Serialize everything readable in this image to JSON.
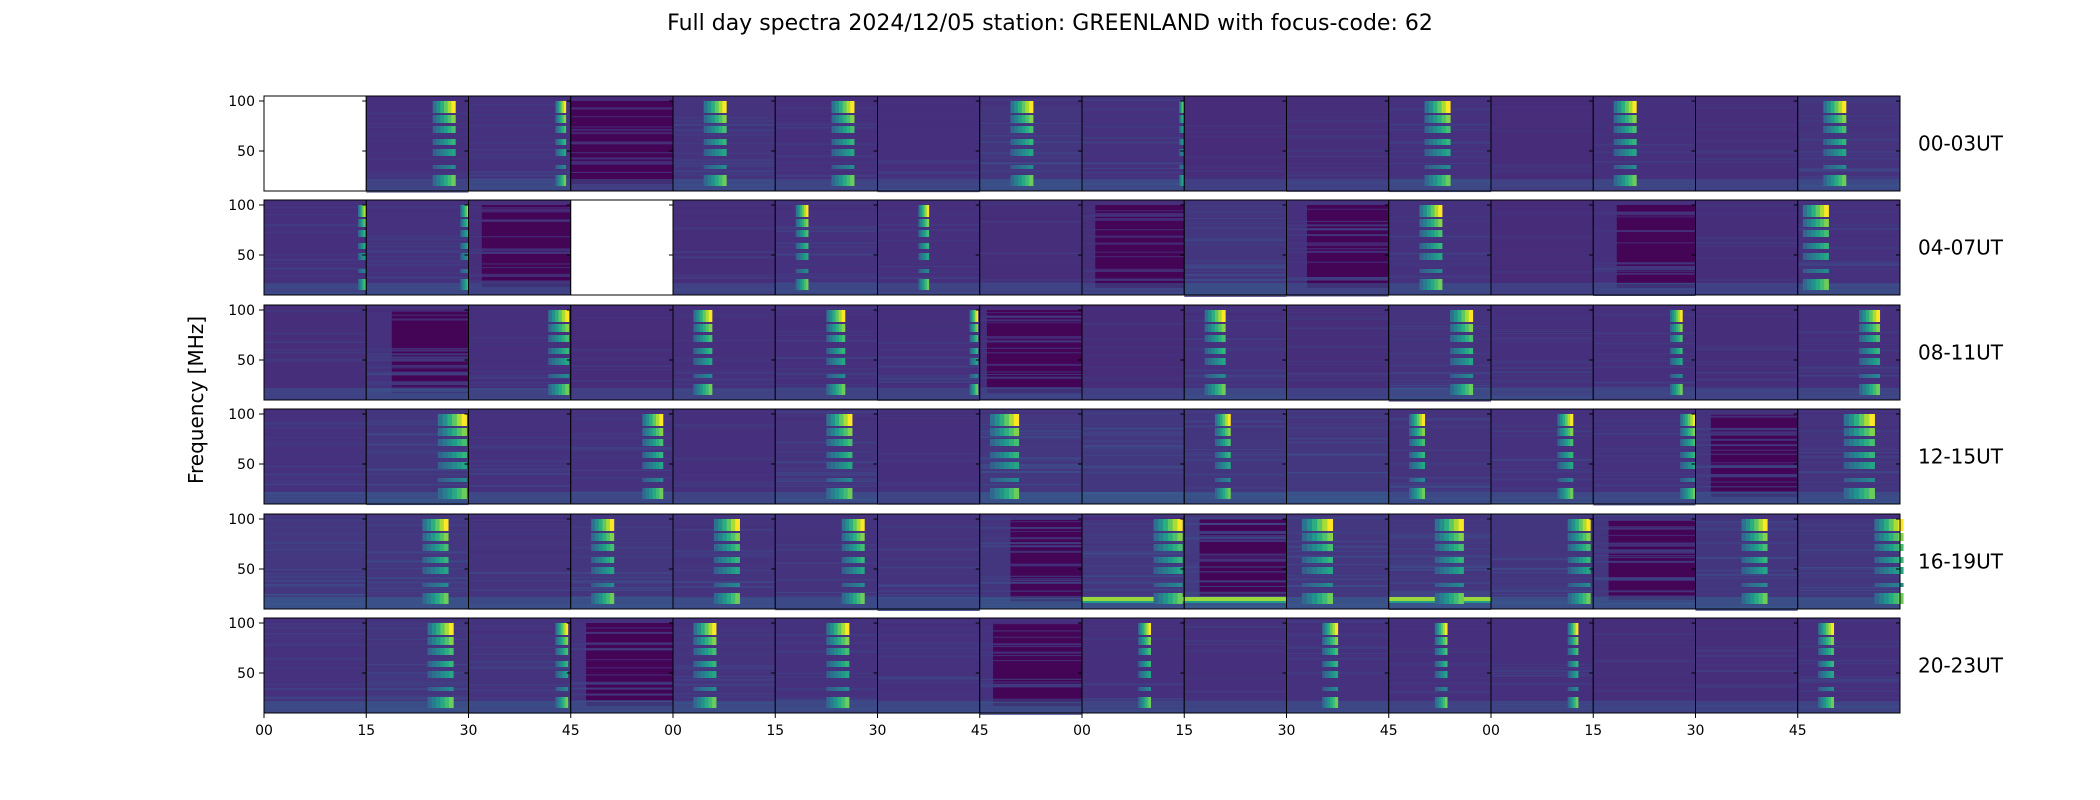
{
  "chart_data": {
    "type": "heatmap",
    "title": "Full day spectra 2024/12/05 station: GREENLAND with focus-code: 62",
    "ylabel": "Frequency [MHz]",
    "xlabel": "",
    "colormap": "viridis",
    "yticks": [
      50,
      100
    ],
    "ylim": [
      10,
      105
    ],
    "xtick_labels": [
      "00",
      "15",
      "30",
      "45",
      "00",
      "15",
      "30",
      "45",
      "00",
      "15",
      "30",
      "45",
      "00",
      "15",
      "30",
      "45"
    ],
    "rows": [
      {
        "label": "00-03UT",
        "panels": [
          {
            "empty": true
          },
          {
            "burst": 0.65,
            "width": 0.22,
            "noise": 0.3
          },
          {
            "burst": 0.85,
            "width": 0.1,
            "noise": 0.35
          },
          {
            "quiet": true,
            "noise": 0.2
          },
          {
            "burst": 0.3,
            "width": 0.22,
            "noise": 0.4
          },
          {
            "burst": 0.55,
            "width": 0.22,
            "noise": 0.3
          },
          {
            "burst": null,
            "noise": 0.3
          },
          {
            "burst": 0.3,
            "width": 0.22,
            "noise": 0.45
          },
          {
            "burst": 0.95,
            "width": 0.06,
            "noise": 0.35
          },
          {
            "burst": null,
            "noise": 0.2
          },
          {
            "burst": null,
            "noise": 0.25
          },
          {
            "burst": 0.35,
            "width": 0.25,
            "noise": 0.35
          },
          {
            "burst": null,
            "noise": 0.2
          },
          {
            "burst": 0.2,
            "width": 0.22,
            "noise": 0.3
          },
          {
            "burst": null,
            "noise": 0.25
          },
          {
            "burst": 0.25,
            "width": 0.22,
            "noise": 0.4
          }
        ]
      },
      {
        "label": "04-07UT",
        "panels": [
          {
            "burst": 0.92,
            "width": 0.08,
            "noise": 0.3
          },
          {
            "burst": 0.92,
            "width": 0.1,
            "noise": 0.35
          },
          {
            "burst": 0.05,
            "width": 0.08,
            "quiet": true,
            "noise": 0.25
          },
          {
            "empty": true
          },
          {
            "burst": null,
            "noise": 0.25
          },
          {
            "burst": 0.2,
            "width": 0.12,
            "noise": 0.35
          },
          {
            "burst": 0.4,
            "width": 0.1,
            "noise": 0.3
          },
          {
            "burst": null,
            "noise": 0.25
          },
          {
            "burst": 0.05,
            "width": 0.08,
            "quiet": true,
            "noise": 0.25
          },
          {
            "burst": null,
            "noise": 0.45
          },
          {
            "burst": 0.05,
            "width": 0.15,
            "quiet": true,
            "noise": 0.3
          },
          {
            "burst": 0.3,
            "width": 0.22,
            "noise": 0.35
          },
          {
            "burst": null,
            "noise": 0.2
          },
          {
            "burst": 0.05,
            "width": 0.18,
            "quiet": true,
            "noise": 0.3
          },
          {
            "burst": null,
            "noise": 0.25
          },
          {
            "burst": 0.05,
            "width": 0.25,
            "noise": 0.35
          }
        ]
      },
      {
        "label": "08-11UT",
        "panels": [
          {
            "burst": null,
            "noise": 0.25
          },
          {
            "burst": 0.05,
            "width": 0.2,
            "quiet": true,
            "noise": 0.35
          },
          {
            "burst": 0.78,
            "width": 0.2,
            "noise": 0.3
          },
          {
            "burst": null,
            "noise": 0.2
          },
          {
            "burst": 0.2,
            "width": 0.18,
            "noise": 0.3
          },
          {
            "burst": 0.5,
            "width": 0.18,
            "noise": 0.3
          },
          {
            "burst": 0.9,
            "width": 0.08,
            "noise": 0.3
          },
          {
            "burst": 0.02,
            "width": 0.05,
            "quiet": true,
            "noise": 0.25
          },
          {
            "burst": null,
            "noise": 0.2
          },
          {
            "burst": 0.2,
            "width": 0.2,
            "noise": 0.35
          },
          {
            "burst": null,
            "noise": 0.25
          },
          {
            "burst": 0.6,
            "width": 0.22,
            "noise": 0.4
          },
          {
            "burst": null,
            "noise": 0.3
          },
          {
            "burst": 0.75,
            "width": 0.12,
            "noise": 0.3
          },
          {
            "burst": null,
            "noise": 0.25
          },
          {
            "burst": 0.6,
            "width": 0.2,
            "noise": 0.3
          }
        ]
      },
      {
        "label": "12-15UT",
        "panels": [
          {
            "burst": null,
            "noise": 0.35
          },
          {
            "burst": 0.7,
            "width": 0.28,
            "noise": 0.45
          },
          {
            "burst": null,
            "noise": 0.35
          },
          {
            "burst": 0.7,
            "width": 0.2,
            "noise": 0.35
          },
          {
            "burst": null,
            "noise": 0.3
          },
          {
            "burst": 0.5,
            "width": 0.25,
            "noise": 0.4
          },
          {
            "burst": null,
            "noise": 0.3
          },
          {
            "burst": 0.1,
            "width": 0.28,
            "noise": 0.5
          },
          {
            "burst": null,
            "noise": 0.55
          },
          {
            "burst": 0.3,
            "width": 0.15,
            "noise": 0.45
          },
          {
            "burst": null,
            "noise": 0.5
          },
          {
            "burst": 0.2,
            "width": 0.15,
            "noise": 0.4
          },
          {
            "burst": 0.65,
            "width": 0.15,
            "noise": 0.35
          },
          {
            "burst": 0.85,
            "width": 0.15,
            "noise": 0.35
          },
          {
            "burst": 0.05,
            "width": 0.1,
            "quiet": true,
            "noise": 0.4
          },
          {
            "burst": 0.45,
            "width": 0.3,
            "noise": 0.4
          }
        ]
      },
      {
        "label": "16-19UT",
        "panels": [
          {
            "burst": null,
            "noise": 0.5
          },
          {
            "burst": 0.55,
            "width": 0.25,
            "noise": 0.5
          },
          {
            "burst": null,
            "noise": 0.4
          },
          {
            "burst": 0.2,
            "width": 0.22,
            "noise": 0.45
          },
          {
            "burst": 0.4,
            "width": 0.25,
            "noise": 0.4
          },
          {
            "burst": 0.65,
            "width": 0.22,
            "noise": 0.4
          },
          {
            "burst": null,
            "noise": 0.4
          },
          {
            "burst": 0.1,
            "width": 0.2,
            "quiet": true,
            "noise": 0.45
          },
          {
            "burst": 0.7,
            "width": 0.28,
            "noise": 0.5,
            "hband": true
          },
          {
            "burst": 0.05,
            "width": 0.1,
            "quiet": true,
            "noise": 0.6,
            "hband": true
          },
          {
            "burst": 0.15,
            "width": 0.3,
            "noise": 0.5
          },
          {
            "burst": 0.45,
            "width": 0.28,
            "noise": 0.5,
            "hband": true
          },
          {
            "burst": 0.75,
            "width": 0.22,
            "noise": 0.45
          },
          {
            "burst": 0.05,
            "width": 0.1,
            "quiet": true,
            "noise": 0.45
          },
          {
            "burst": 0.45,
            "width": 0.25,
            "noise": 0.45
          },
          {
            "burst": 0.75,
            "width": 0.28,
            "noise": 0.45
          }
        ]
      },
      {
        "label": "20-23UT",
        "panels": [
          {
            "burst": null,
            "noise": 0.35
          },
          {
            "burst": 0.6,
            "width": 0.25,
            "noise": 0.45
          },
          {
            "burst": 0.85,
            "width": 0.12,
            "noise": 0.4
          },
          {
            "burst": 0.05,
            "width": 0.1,
            "quiet": true,
            "noise": 0.35
          },
          {
            "burst": 0.2,
            "width": 0.22,
            "noise": 0.4
          },
          {
            "burst": 0.5,
            "width": 0.22,
            "noise": 0.35
          },
          {
            "burst": null,
            "noise": 0.35
          },
          {
            "burst": 0.05,
            "width": 0.08,
            "quiet": true,
            "noise": 0.35
          },
          {
            "burst": 0.55,
            "width": 0.12,
            "noise": 0.3
          },
          {
            "burst": null,
            "noise": 0.3
          },
          {
            "burst": 0.35,
            "width": 0.15,
            "noise": 0.35
          },
          {
            "burst": 0.45,
            "width": 0.12,
            "noise": 0.3
          },
          {
            "burst": 0.75,
            "width": 0.1,
            "noise": 0.3
          },
          {
            "burst": null,
            "noise": 0.25
          },
          {
            "burst": null,
            "noise": 0.25
          },
          {
            "burst": 0.2,
            "width": 0.15,
            "noise": 0.3
          }
        ]
      }
    ]
  }
}
